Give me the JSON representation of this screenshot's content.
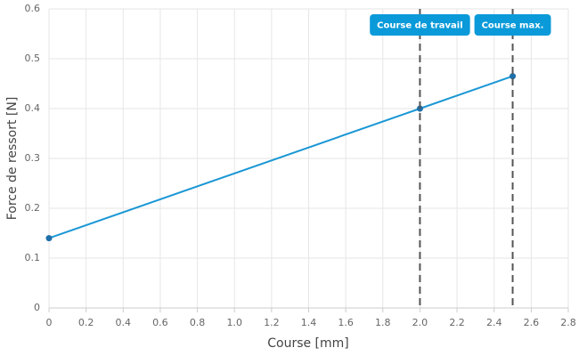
{
  "chart_data": {
    "type": "line",
    "x_label": "Course [mm]",
    "y_label": "Force de ressort [N]",
    "series": [
      {
        "color": "#1a97d5",
        "x": [
          0,
          2,
          2.5
        ],
        "values": [
          0.14,
          0.4,
          0.465
        ]
      }
    ],
    "xlim": [
      0,
      2.8
    ],
    "xticks": [
      0,
      0.2,
      0.4,
      0.6,
      0.8,
      {
        "value": 1,
        "label": "1.0"
      },
      1.2,
      1.4,
      1.6,
      1.8,
      {
        "value": 2,
        "label": "2.0"
      },
      2.2,
      2.4,
      2.6,
      2.8
    ],
    "ylim": [
      0,
      0.6
    ],
    "yticks": [
      0,
      0.1,
      0.2,
      0.3,
      0.4,
      0.5,
      0.6
    ],
    "grid": true,
    "annotations": [
      {
        "x": 2,
        "label": "Course de travail"
      },
      {
        "x": 2.5,
        "label": "Course max."
      }
    ]
  }
}
